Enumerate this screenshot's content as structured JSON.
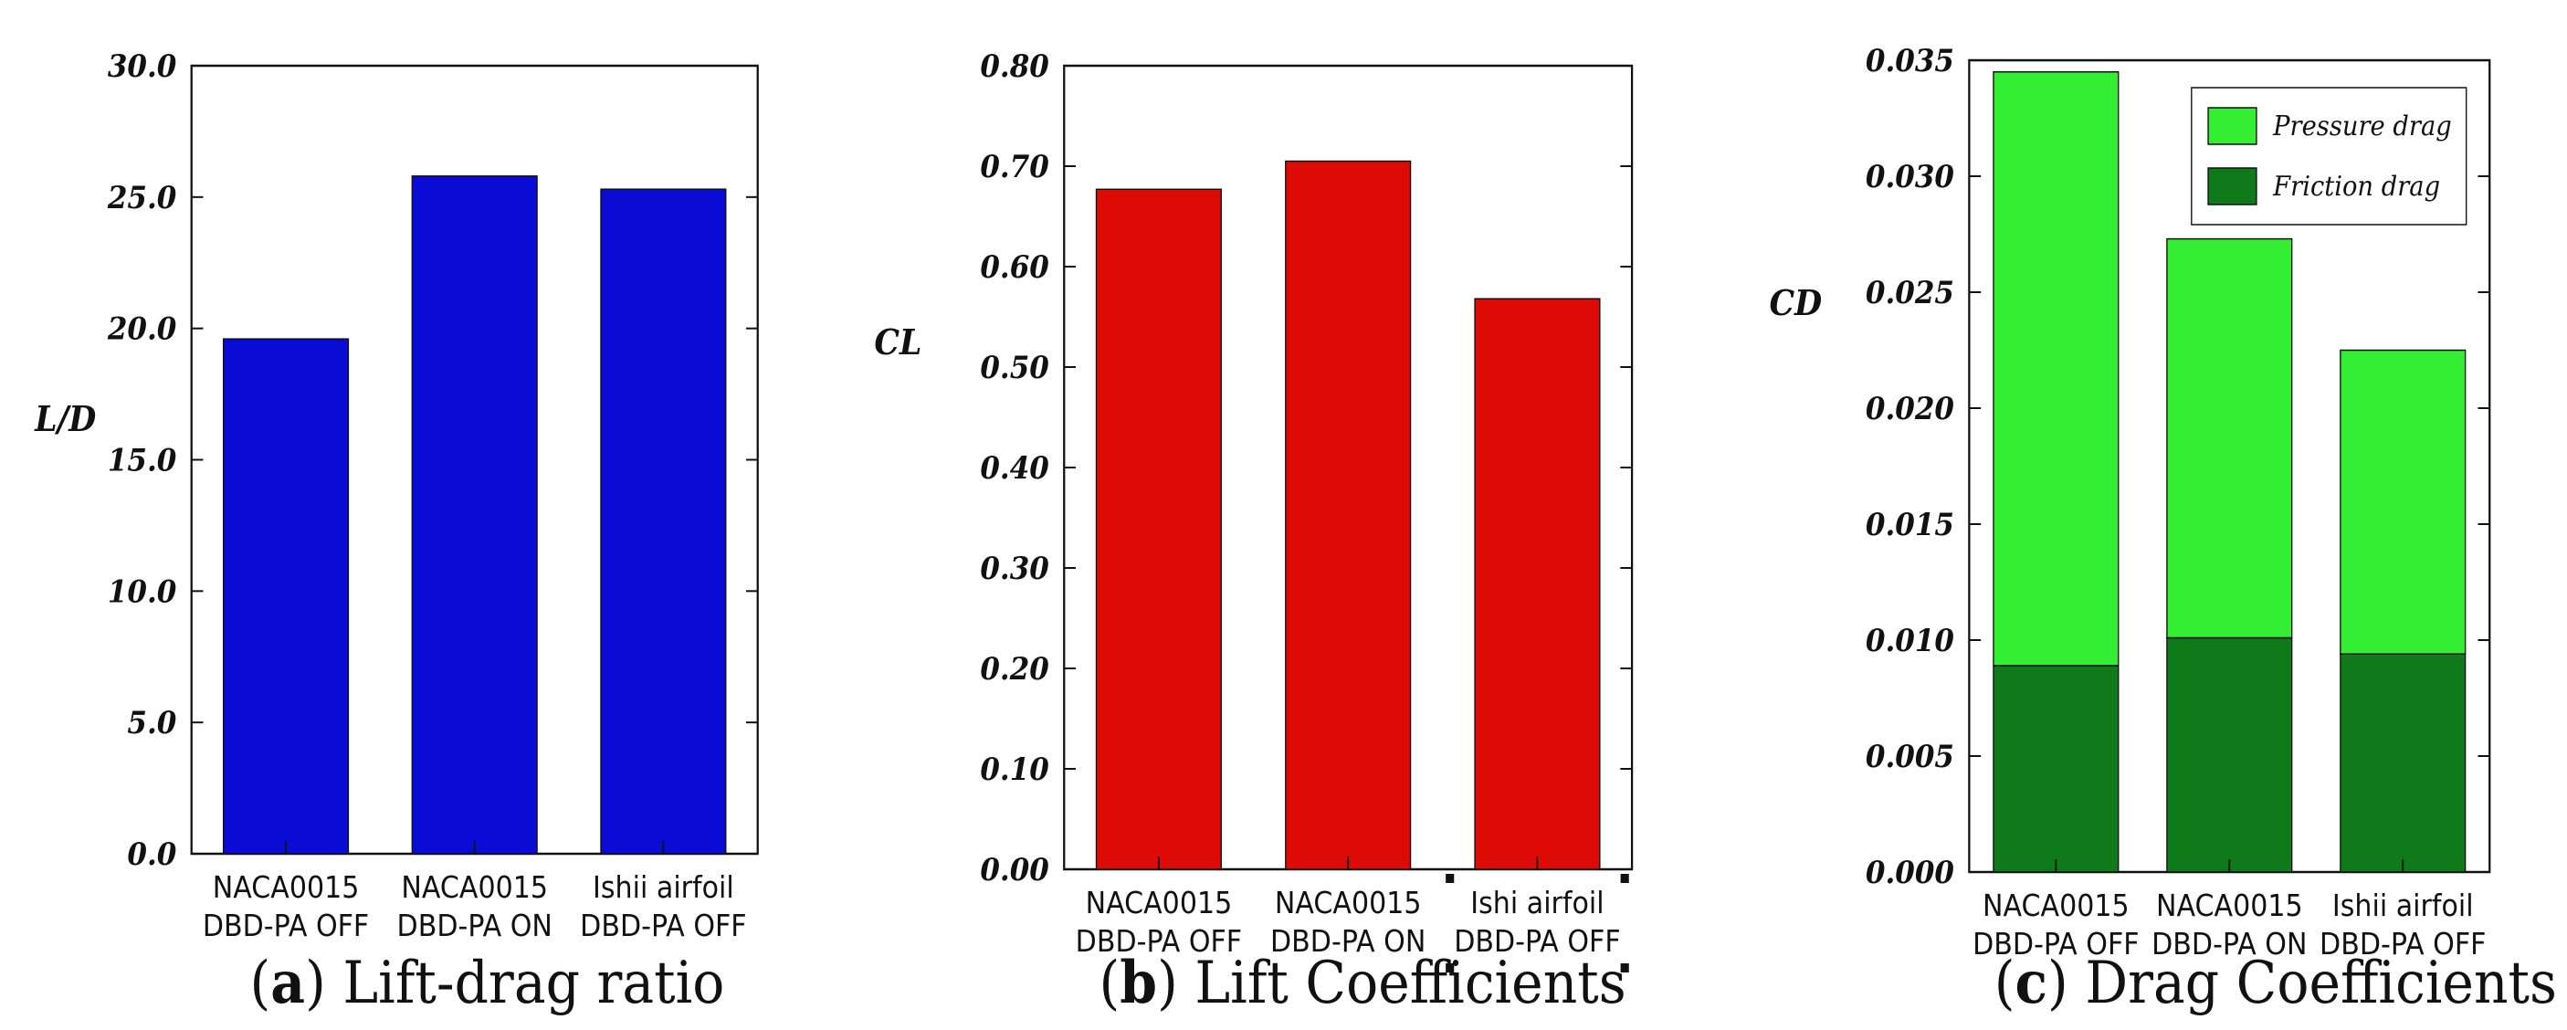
{
  "chart_data": [
    {
      "id": "a",
      "type": "bar",
      "caption_letter": "a",
      "caption_text": "Lift-drag ratio",
      "ylabel": "L/D",
      "categories": [
        [
          "NACA0015",
          "DBD-PA OFF"
        ],
        [
          "NACA0015",
          "DBD-PA ON"
        ],
        [
          "Ishii airfoil",
          "DBD-PA OFF"
        ]
      ],
      "values": [
        19.6,
        25.8,
        25.3
      ],
      "ylim": [
        0,
        30
      ],
      "yticks": [
        "0.0",
        "5.0",
        "10.0",
        "15.0",
        "20.0",
        "25.0",
        "30.0"
      ],
      "color": "#0b0bd6",
      "grid": false
    },
    {
      "id": "b",
      "type": "bar",
      "caption_letter": "b",
      "caption_text": "Lift Coefficients",
      "ylabel": "CL",
      "categories": [
        [
          "NACA0015",
          "DBD-PA OFF"
        ],
        [
          "NACA0015",
          "DBD-PA ON"
        ],
        [
          "Ishi airfoil",
          "DBD-PA OFF"
        ]
      ],
      "values": [
        0.677,
        0.705,
        0.568
      ],
      "ylim": [
        0,
        0.8
      ],
      "yticks": [
        "0.00",
        "0.10",
        "0.20",
        "0.30",
        "0.40",
        "0.50",
        "0.60",
        "0.70",
        "0.80"
      ],
      "color": "#dd0a05",
      "grid": false
    },
    {
      "id": "c",
      "type": "bar",
      "stacked": true,
      "caption_letter": "c",
      "caption_text": "Drag Coefficients",
      "ylabel": "CD",
      "categories": [
        [
          "NACA0015",
          "DBD-PA OFF"
        ],
        [
          "NACA0015",
          "DBD-PA ON"
        ],
        [
          "Ishii airfoil",
          "DBD-PA OFF"
        ]
      ],
      "series": [
        {
          "name": "Friction drag",
          "values": [
            0.0089,
            0.0101,
            0.0094
          ],
          "color": "#0f7a1a"
        },
        {
          "name": "Pressure drag",
          "values": [
            0.0256,
            0.0172,
            0.0131
          ],
          "color": "#33ee33"
        }
      ],
      "totals": [
        0.0345,
        0.0273,
        0.0225
      ],
      "ylim": [
        0,
        0.035
      ],
      "yticks": [
        "0.000",
        "0.005",
        "0.010",
        "0.015",
        "0.020",
        "0.025",
        "0.030",
        "0.035"
      ],
      "legend": {
        "position": "top-right",
        "entries": [
          "Pressure drag",
          "Friction drag"
        ]
      },
      "grid": false
    }
  ]
}
